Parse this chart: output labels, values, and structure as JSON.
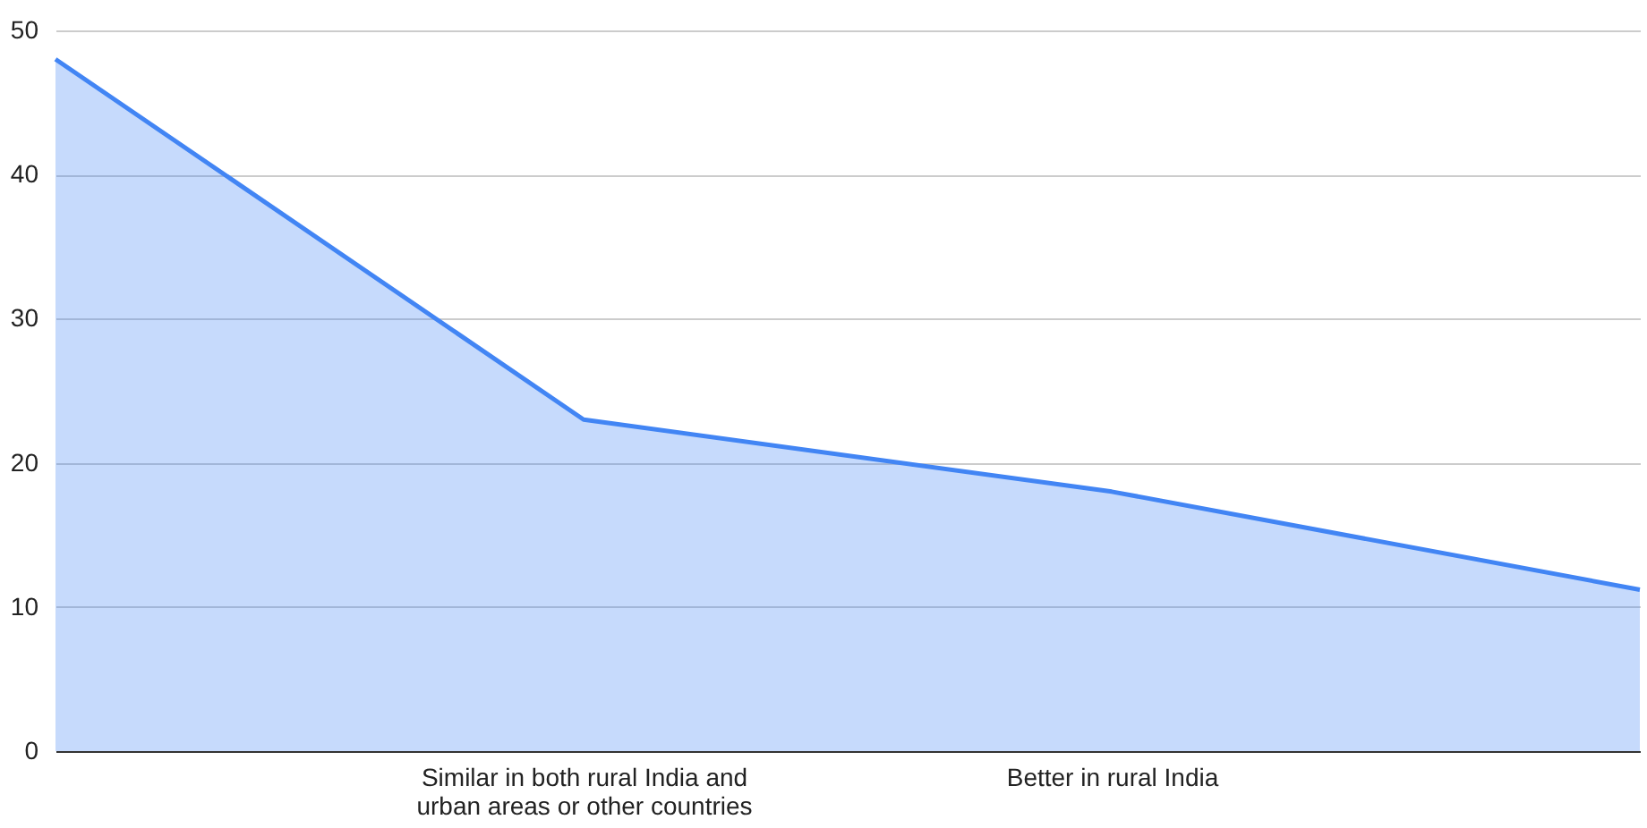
{
  "chart_data": {
    "type": "area",
    "categories": [
      null,
      "Similar in both rural India and urban areas or other countries",
      "Better in rural India",
      null
    ],
    "series": [
      {
        "color": "#4285f4",
        "values": [
          48,
          23,
          18,
          11.2
        ]
      }
    ],
    "ylim": [
      0,
      50
    ],
    "yticks": [
      0,
      10,
      20,
      30,
      40,
      50
    ],
    "grid": "y"
  }
}
